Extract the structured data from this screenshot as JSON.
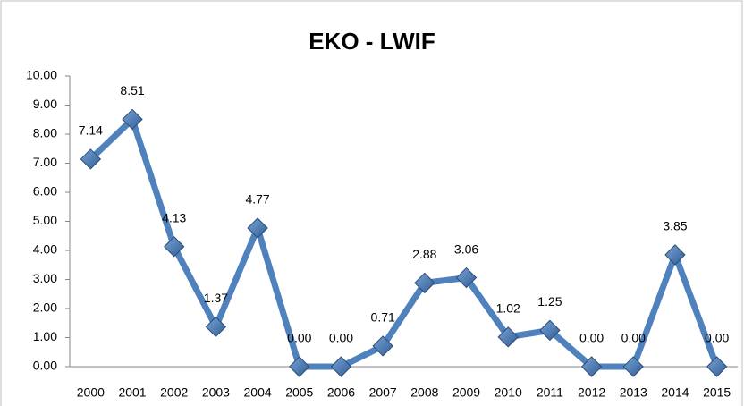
{
  "chart_data": {
    "type": "line",
    "title": "EKO - LWIF",
    "categories": [
      "2000",
      "2001",
      "2002",
      "2003",
      "2004",
      "2005",
      "2006",
      "2007",
      "2008",
      "2009",
      "2010",
      "2011",
      "2012",
      "2013",
      "2014",
      "2015"
    ],
    "series": [
      {
        "name": "EKO - LWIF",
        "color": "#4f81bd",
        "values": [
          7.14,
          8.51,
          4.13,
          1.37,
          4.77,
          0,
          0,
          0.71,
          2.88,
          3.06,
          1.02,
          1.25,
          0,
          0,
          3.85,
          0
        ],
        "value_labels": [
          "7.14",
          "8.51",
          "4.13",
          "1.37",
          "4.77",
          "0.00",
          "0.00",
          "0.71",
          "2.88",
          "3.06",
          "1.02",
          "1.25",
          "0.00",
          "0.00",
          "3.85",
          "0.00"
        ]
      }
    ],
    "ylim": [
      0,
      10
    ],
    "yticks": [
      {
        "value": 0,
        "label": "0.00"
      },
      {
        "value": 1,
        "label": "1.00"
      },
      {
        "value": 2,
        "label": "2.00"
      },
      {
        "value": 3,
        "label": "3.00"
      },
      {
        "value": 4,
        "label": "4.00"
      },
      {
        "value": 5,
        "label": "5.00"
      },
      {
        "value": 6,
        "label": "6.00"
      },
      {
        "value": 7,
        "label": "7.00"
      },
      {
        "value": 8,
        "label": "8.00"
      },
      {
        "value": 9,
        "label": "9.00"
      },
      {
        "value": 10,
        "label": "10.00"
      }
    ],
    "grid": false
  }
}
